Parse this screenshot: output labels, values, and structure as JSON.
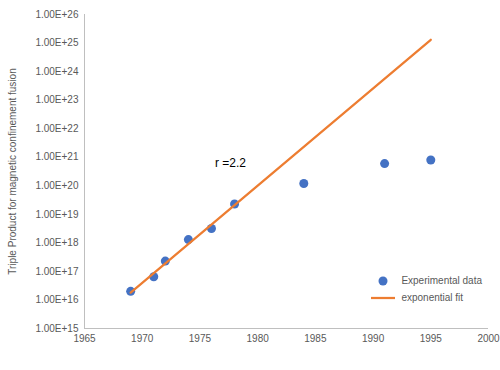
{
  "chart_data": {
    "type": "scatter",
    "ylabel": "Triple Product for magnetic confinement fusion",
    "xlim": [
      1965,
      2000
    ],
    "xticks": [
      1965,
      1970,
      1975,
      1980,
      1985,
      1990,
      1995,
      2000
    ],
    "ylim": [
      1000000000000000.0,
      1e+26
    ],
    "yticks": [
      {
        "value": 1000000000000000.0,
        "label": "1.00E+15"
      },
      {
        "value": 1e+16,
        "label": "1.00E+16"
      },
      {
        "value": 1e+17,
        "label": "1.00E+17"
      },
      {
        "value": 1e+18,
        "label": "1.00E+18"
      },
      {
        "value": 1e+19,
        "label": "1.00E+19"
      },
      {
        "value": 1e+20,
        "label": "1.00E+20"
      },
      {
        "value": 1e+21,
        "label": "1.00E+21"
      },
      {
        "value": 1e+22,
        "label": "1.00E+22"
      },
      {
        "value": 1e+23,
        "label": "1.00E+23"
      },
      {
        "value": 1e+24,
        "label": "1.00E+24"
      },
      {
        "value": 1e+25,
        "label": "1.00E+25"
      },
      {
        "value": 1e+26,
        "label": "1.00E+26"
      }
    ],
    "log": "y",
    "grid": false,
    "legend": "lower right",
    "annotations": [
      {
        "text": "r =2.2",
        "x": 1976.3,
        "y": 6e+20
      }
    ],
    "series": [
      {
        "name": "Experimental data",
        "type": "scatter",
        "marker": "circle",
        "color": "#4472c4",
        "x": [
          1969,
          1971,
          1972,
          1974,
          1976,
          1978,
          1984,
          1991,
          1995
        ],
        "values": [
          2e+16,
          6.5e+16,
          2.3e+17,
          1.3e+18,
          3.2e+18,
          2.3e+19,
          1.2e+20,
          6e+20,
          8e+20
        ]
      },
      {
        "name": "exponential fit",
        "type": "line",
        "line_style": "solid",
        "color": "#ed7d31",
        "x": [
          1969,
          1995
        ],
        "values": [
          1.8e+16,
          1.3e+25
        ]
      }
    ]
  }
}
